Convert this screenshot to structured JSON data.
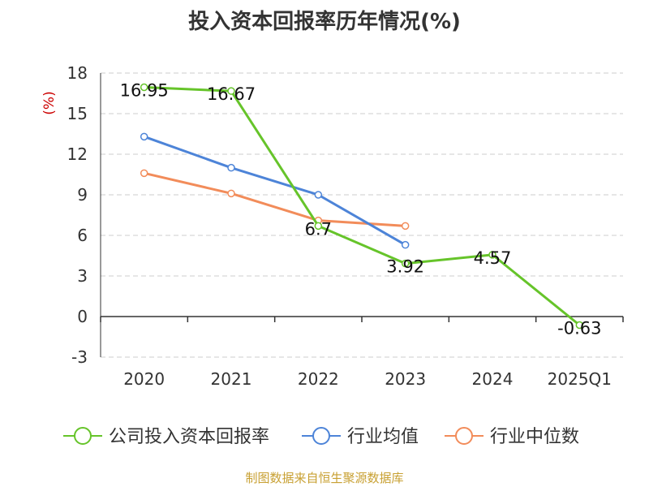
{
  "chart_data": {
    "type": "line",
    "title": "投入资本回报率历年情况(%)",
    "ylabel": "(%)",
    "xlabel": "",
    "categories": [
      "2020",
      "2021",
      "2022",
      "2023",
      "2024",
      "2025Q1"
    ],
    "ylim": [
      -3,
      18
    ],
    "yticks": [
      -3,
      0,
      3,
      6,
      9,
      12,
      15,
      18
    ],
    "grid": true,
    "legend_position": "bottom",
    "series": [
      {
        "name": "公司投入资本回报率",
        "color": "#66c42a",
        "values": [
          16.95,
          16.67,
          6.7,
          3.92,
          4.57,
          -0.63
        ],
        "labels": [
          "16.95",
          "16.67",
          "6.7",
          "3.92",
          "4.57",
          "-0.63"
        ]
      },
      {
        "name": "行业均值",
        "color": "#4d84d8",
        "values": [
          13.3,
          11.0,
          9.0,
          5.3,
          null,
          null
        ]
      },
      {
        "name": "行业中位数",
        "color": "#f28c5a",
        "values": [
          10.6,
          9.1,
          7.1,
          6.7,
          null,
          null
        ]
      }
    ]
  },
  "footer": "制图数据来自恒生聚源数据库"
}
